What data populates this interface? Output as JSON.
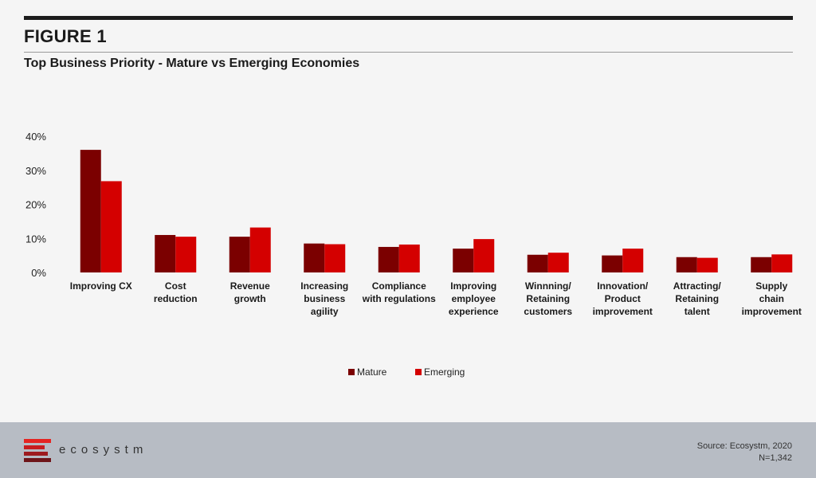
{
  "header": {
    "figure_label": "FIGURE 1",
    "subtitle": "Top Business Priority - Mature vs Emerging Economies"
  },
  "chart_data": {
    "type": "bar",
    "categories": [
      [
        "Improving CX"
      ],
      [
        "Cost",
        "reduction"
      ],
      [
        "Revenue",
        "growth"
      ],
      [
        "Increasing",
        "business",
        "agility"
      ],
      [
        "Compliance",
        "with regulations"
      ],
      [
        "Improving",
        "employee",
        "experience"
      ],
      [
        "Winnning/",
        "Retaining",
        "customers"
      ],
      [
        "Innovation/",
        "Product",
        "improvement"
      ],
      [
        "Attracting/",
        "Retaining",
        "talent"
      ],
      [
        "Supply",
        "chain",
        "improvement"
      ]
    ],
    "series": [
      {
        "name": "Mature",
        "color": "#7b0000",
        "values": [
          36,
          11,
          10.5,
          8.5,
          7.5,
          7,
          5.2,
          5,
          4.5,
          4.5
        ]
      },
      {
        "name": "Emerging",
        "color": "#d40000",
        "values": [
          26.8,
          10.5,
          13.2,
          8.3,
          8.2,
          9.8,
          5.8,
          7,
          4.3,
          5.3
        ]
      }
    ],
    "ylim": [
      0,
      40
    ],
    "yticks": [
      0,
      10,
      20,
      30,
      40
    ],
    "ytick_labels": [
      "0%",
      "10%",
      "20%",
      "30%",
      "40%"
    ],
    "grid": false,
    "legend_position": "bottom-center"
  },
  "footer": {
    "logo_text": "ecosystm",
    "source_line1": "Source: Ecosystm, 2020",
    "source_line2": "N=1,342",
    "logo_colors": [
      "#e52421",
      "#c81d1f",
      "#9e1b1f",
      "#6e1519"
    ]
  }
}
